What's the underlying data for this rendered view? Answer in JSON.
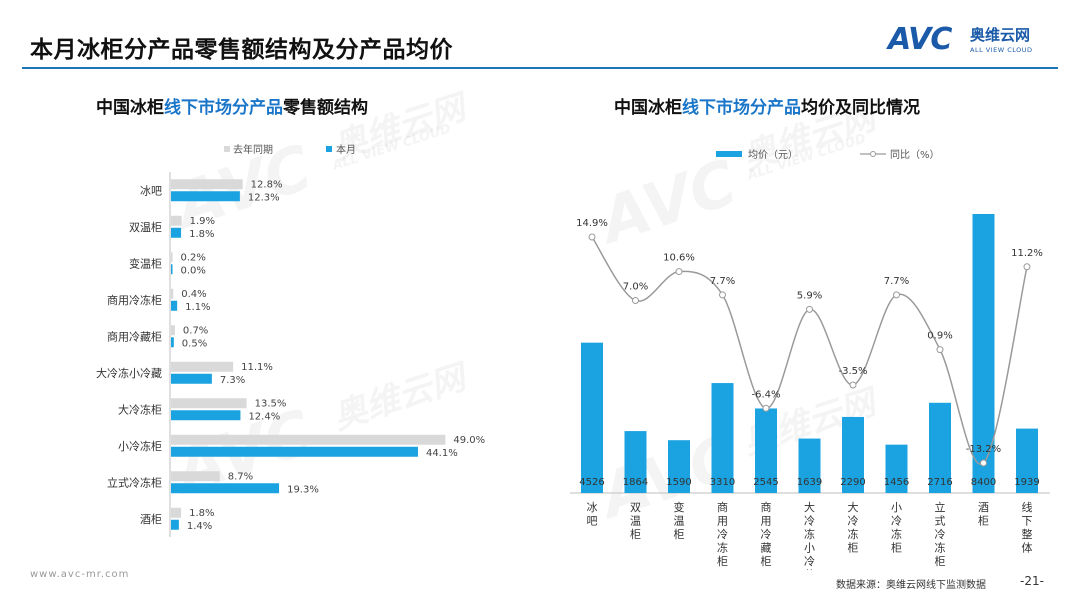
{
  "page": {
    "title": "本月冰柜分产品零售额结构及分产品均价",
    "logo_text": "AVC",
    "logo_cn": "奥维云网",
    "logo_sub": "ALL VIEW CLOUD",
    "watermark_logo": "AVC",
    "watermark_cn": "奥维云网",
    "watermark_en": "ALL VIEW CLOUD",
    "footer_url": "www.avc-mr.com",
    "footer_source": "数据来源：奥维云网线下监测数据",
    "page_number": "-21-"
  },
  "colors": {
    "accent_blue": "#1aa3e0",
    "last_year_gray": "#d9d9d9",
    "line_gray": "#9a9a9a",
    "title_highlight": "#1a76c8",
    "rule": "#1a76b8"
  },
  "chart_data": [
    {
      "type": "bar",
      "orientation": "horizontal",
      "title": "中国冰柜线下市场分产品零售额结构",
      "title_parts": [
        "中国冰柜",
        "线下市场分产品",
        "零售额结构"
      ],
      "legend_position": "top",
      "categories": [
        "冰吧",
        "双温柜",
        "变温柜",
        "商用冷冻柜",
        "商用冷藏柜",
        "大冷冻小冷藏",
        "大冷冻柜",
        "小冷冻柜",
        "立式冷冻柜",
        "酒柜"
      ],
      "series": [
        {
          "name": "去年同期",
          "values": [
            12.8,
            1.9,
            0.2,
            0.4,
            0.7,
            11.1,
            13.5,
            49.0,
            8.7,
            1.8
          ],
          "labels": [
            "12.8%",
            "1.9%",
            "0.2%",
            "0.4%",
            "0.7%",
            "11.1%",
            "13.5%",
            "49.0%",
            "8.7%",
            "1.8%"
          ]
        },
        {
          "name": "本月",
          "values": [
            12.3,
            1.8,
            0.0,
            1.1,
            0.5,
            7.3,
            12.4,
            44.1,
            19.3,
            1.4
          ],
          "labels": [
            "12.3%",
            "1.8%",
            "0.0%",
            "1.1%",
            "0.5%",
            "7.3%",
            "12.4%",
            "44.1%",
            "19.3%",
            "1.4%"
          ]
        }
      ],
      "xlim": [
        0,
        55
      ]
    },
    {
      "type": "bar+line",
      "title": "中国冰柜线下市场分产品均价及同比情况",
      "title_parts": [
        "中国冰柜",
        "线下市场分产品",
        "均价及同比情况"
      ],
      "legend_position": "top",
      "categories": [
        "冰吧",
        "双温柜",
        "变温柜",
        "商用冷冻柜",
        "商用冷藏柜",
        "大冷冻小冷藏",
        "大冷冻柜",
        "小冷冻柜",
        "立式冷冻柜",
        "酒柜",
        "线下整体"
      ],
      "bar_series": {
        "name": "均价（元）",
        "values": [
          4526,
          1864,
          1590,
          3310,
          2545,
          1639,
          2290,
          1456,
          2716,
          8400,
          1939
        ],
        "labels": [
          "4526",
          "1864",
          "1590",
          "3310",
          "2545",
          "1639",
          "2290",
          "1456",
          "2716",
          "8400",
          "1939"
        ]
      },
      "line_series": {
        "name": "同比（%）",
        "values": [
          14.9,
          7.0,
          10.6,
          7.7,
          -6.4,
          5.9,
          -3.5,
          7.7,
          0.9,
          -13.2,
          11.2
        ],
        "labels": [
          "14.9%",
          "7.0%",
          "10.6%",
          "7.7%",
          "-6.4%",
          "5.9%",
          "-3.5%",
          "7.7%",
          "0.9%",
          "-13.2%",
          "11.2%"
        ]
      },
      "bar_ylim": [
        0,
        8400
      ],
      "line_ylim": [
        -13.2,
        14.9
      ]
    }
  ]
}
